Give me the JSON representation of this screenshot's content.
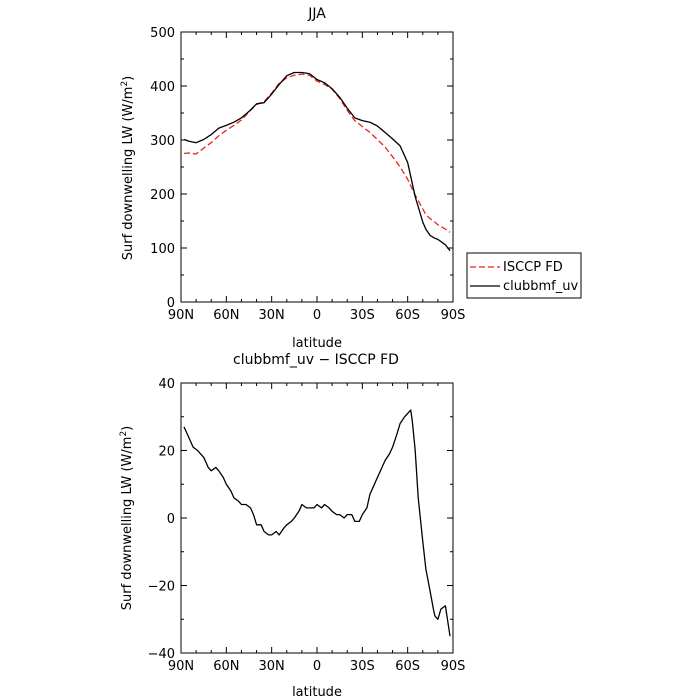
{
  "chart_data": [
    {
      "type": "line",
      "title": "JJA",
      "xlabel": "latitude",
      "ylabel_prefix": "Surf downwelling LW (W/m",
      "ylabel_sup": "2",
      "ylabel_suffix": ")",
      "xlim": [
        90,
        -90
      ],
      "ylim": [
        0,
        500
      ],
      "xticks": [
        90,
        60,
        30,
        0,
        -30,
        -60,
        -90
      ],
      "xtick_labels": [
        "90N",
        "60N",
        "30N",
        "0",
        "30S",
        "60S",
        "90S"
      ],
      "yticks": [
        0,
        100,
        200,
        300,
        400,
        500
      ],
      "ytick_labels": [
        "0",
        "100",
        "200",
        "300",
        "400",
        "500"
      ],
      "legend_position": "right",
      "series": [
        {
          "name": "ISCCP FD",
          "color": "#e8231c",
          "dash": "dashed",
          "x": [
            88,
            85,
            80,
            75,
            70,
            65,
            60,
            55,
            50,
            45,
            40,
            35,
            30,
            25,
            20,
            15,
            10,
            5,
            0,
            -5,
            -10,
            -15,
            -20,
            -25,
            -30,
            -35,
            -40,
            -45,
            -50,
            -55,
            -60,
            -65,
            -70,
            -72,
            -75,
            -78,
            -80,
            -85,
            -88
          ],
          "y": [
            275,
            276,
            274,
            285,
            295,
            308,
            318,
            327,
            337,
            352,
            366,
            371,
            387,
            405,
            415,
            420,
            422,
            420,
            409,
            403,
            394,
            377,
            355,
            336,
            325,
            314,
            301,
            287,
            269,
            250,
            227,
            198,
            172,
            162,
            154,
            148,
            143,
            135,
            129
          ]
        },
        {
          "name": "clubbmf_uv",
          "color": "#000000",
          "dash": "solid",
          "x": [
            88,
            85,
            80,
            75,
            70,
            65,
            60,
            55,
            50,
            45,
            40,
            35,
            30,
            25,
            20,
            15,
            10,
            5,
            0,
            -5,
            -10,
            -15,
            -20,
            -25,
            -30,
            -35,
            -40,
            -45,
            -50,
            -55,
            -60,
            -65,
            -70,
            -72,
            -75,
            -78,
            -80,
            -85,
            -88
          ],
          "y": [
            301,
            298,
            295,
            301,
            310,
            322,
            327,
            333,
            341,
            353,
            367,
            369,
            385,
            403,
            419,
            425,
            425,
            423,
            412,
            406,
            395,
            379,
            359,
            341,
            336,
            333,
            326,
            314,
            302,
            289,
            258,
            195,
            148,
            135,
            123,
            118,
            116,
            106,
            95
          ]
        }
      ]
    },
    {
      "type": "line",
      "title": "clubbmf_uv − ISCCP FD",
      "xlabel": "latitude",
      "ylabel_prefix": "Surf downwelling LW (W/m",
      "ylabel_sup": "2",
      "ylabel_suffix": ")",
      "xlim": [
        90,
        -90
      ],
      "ylim": [
        -40,
        40
      ],
      "xticks": [
        90,
        60,
        30,
        0,
        -30,
        -60,
        -90
      ],
      "xtick_labels": [
        "90N",
        "60N",
        "30N",
        "0",
        "30S",
        "60S",
        "90S"
      ],
      "yticks": [
        -40,
        -20,
        0,
        20,
        40
      ],
      "ytick_labels": [
        "−40",
        "−20",
        "0",
        "20",
        "40"
      ],
      "series": [
        {
          "name": "",
          "color": "#000000",
          "dash": "solid",
          "x": [
            88,
            85,
            82,
            79,
            77,
            75,
            72,
            70,
            67,
            65,
            62,
            60,
            57,
            55,
            52,
            50,
            47,
            44,
            42,
            40,
            37,
            35,
            32,
            30,
            27,
            25,
            22,
            20,
            17,
            15,
            12,
            10,
            7,
            5,
            2,
            0,
            -3,
            -5,
            -8,
            -10,
            -13,
            -15,
            -18,
            -20,
            -23,
            -25,
            -28,
            -30,
            -33,
            -35,
            -38,
            -40,
            -43,
            -45,
            -48,
            -50,
            -53,
            -55,
            -58,
            -60,
            -62,
            -63,
            -65,
            -67,
            -70,
            -72,
            -75,
            -77,
            -78,
            -80,
            -82,
            -85,
            -88
          ],
          "y": [
            27,
            24,
            21,
            20,
            19,
            18,
            15,
            14,
            15,
            14,
            12,
            10,
            8,
            6,
            5,
            4,
            4,
            3,
            1,
            -2,
            -2,
            -4,
            -5,
            -5,
            -4,
            -5,
            -3,
            -2,
            -1,
            0,
            2,
            4,
            3,
            3,
            3,
            4,
            3,
            4,
            3,
            2,
            1,
            1,
            0,
            1,
            1,
            -1,
            -1,
            1,
            3,
            7,
            10,
            12,
            15,
            17,
            19,
            21,
            25,
            28,
            30,
            31,
            32,
            29,
            20,
            6,
            -7,
            -15,
            -22,
            -27,
            -29,
            -30,
            -27,
            -26,
            -35
          ]
        }
      ]
    }
  ]
}
